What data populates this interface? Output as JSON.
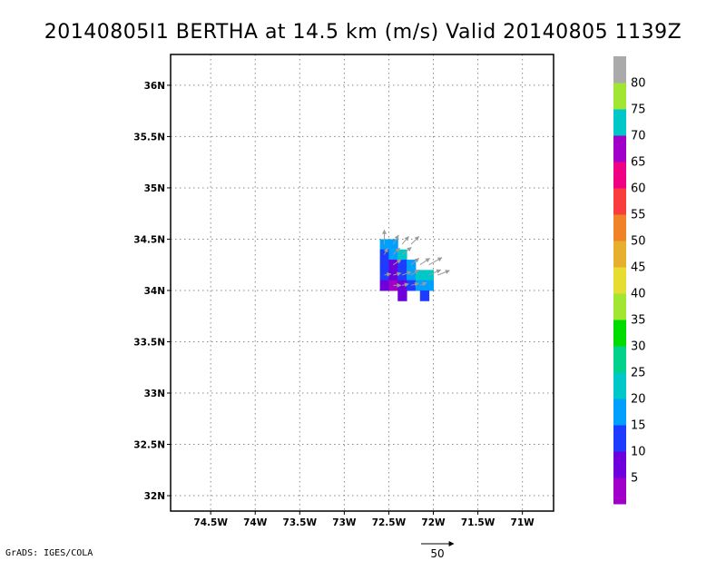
{
  "chart_data": {
    "type": "heatmap",
    "title": "20140805I1 BERTHA at 14.5 km (m/s) Valid 20140805 1139Z",
    "credit": "GrADS: IGES/COLA",
    "xlim": [
      -74.95,
      -70.65
    ],
    "ylim": [
      31.85,
      36.3
    ],
    "x_ticks": [
      {
        "value": -74.5,
        "label": "74.5W"
      },
      {
        "value": -74.0,
        "label": "74W"
      },
      {
        "value": -73.5,
        "label": "73.5W"
      },
      {
        "value": -73.0,
        "label": "73W"
      },
      {
        "value": -72.5,
        "label": "72.5W"
      },
      {
        "value": -72.0,
        "label": "72W"
      },
      {
        "value": -71.5,
        "label": "71.5W"
      },
      {
        "value": -71.0,
        "label": "71W"
      }
    ],
    "y_ticks": [
      {
        "value": 32.0,
        "label": "32N"
      },
      {
        "value": 32.5,
        "label": "32.5N"
      },
      {
        "value": 33.0,
        "label": "33N"
      },
      {
        "value": 33.5,
        "label": "33.5N"
      },
      {
        "value": 34.0,
        "label": "34N"
      },
      {
        "value": 34.5,
        "label": "34.5N"
      },
      {
        "value": 35.0,
        "label": "35N"
      },
      {
        "value": 35.5,
        "label": "35.5N"
      },
      {
        "value": 36.0,
        "label": "36N"
      }
    ],
    "grid": true,
    "colorbar": {
      "colors": [
        "#a000c8",
        "#6e00dc",
        "#1e3cff",
        "#00a0ff",
        "#00c8c8",
        "#00d28c",
        "#00dc00",
        "#a0e632",
        "#e6dc32",
        "#e6af2d",
        "#f08228",
        "#fa3c3c",
        "#f00082",
        "#a000c8",
        "#00c8c8",
        "#a0e632",
        "#aaaaaa"
      ],
      "labels": [
        "5",
        "10",
        "15",
        "20",
        "25",
        "30",
        "35",
        "40",
        "45",
        "50",
        "55",
        "60",
        "65",
        "70",
        "75",
        "80"
      ]
    },
    "cell_size_deg": 0.1,
    "cells": [
      {
        "lon": -72.55,
        "lat": 34.45,
        "speed": 17
      },
      {
        "lon": -72.45,
        "lat": 34.45,
        "speed": 17
      },
      {
        "lon": -72.55,
        "lat": 34.35,
        "speed": 12
      },
      {
        "lon": -72.45,
        "lat": 34.35,
        "speed": 17
      },
      {
        "lon": -72.35,
        "lat": 34.35,
        "speed": 22
      },
      {
        "lon": -72.55,
        "lat": 34.25,
        "speed": 12
      },
      {
        "lon": -72.45,
        "lat": 34.25,
        "speed": 8
      },
      {
        "lon": -72.35,
        "lat": 34.25,
        "speed": 12
      },
      {
        "lon": -72.25,
        "lat": 34.25,
        "speed": 17
      },
      {
        "lon": -72.55,
        "lat": 34.15,
        "speed": 12
      },
      {
        "lon": -72.45,
        "lat": 34.15,
        "speed": 8
      },
      {
        "lon": -72.35,
        "lat": 34.15,
        "speed": 12
      },
      {
        "lon": -72.25,
        "lat": 34.15,
        "speed": 17
      },
      {
        "lon": -72.15,
        "lat": 34.15,
        "speed": 22
      },
      {
        "lon": -72.05,
        "lat": 34.15,
        "speed": 22
      },
      {
        "lon": -72.55,
        "lat": 34.05,
        "speed": 8
      },
      {
        "lon": -72.45,
        "lat": 34.05,
        "speed": 3
      },
      {
        "lon": -72.35,
        "lat": 34.05,
        "speed": 8
      },
      {
        "lon": -72.25,
        "lat": 34.05,
        "speed": 12
      },
      {
        "lon": -72.15,
        "lat": 34.05,
        "speed": 17
      },
      {
        "lon": -72.05,
        "lat": 34.05,
        "speed": 17
      },
      {
        "lon": -72.35,
        "lat": 33.95,
        "speed": 8
      },
      {
        "lon": -72.1,
        "lat": 33.95,
        "speed": 12
      }
    ],
    "vectors": [
      {
        "lon": -72.55,
        "lat": 34.45,
        "u": 0,
        "v": 22
      },
      {
        "lon": -72.45,
        "lat": 34.45,
        "u": 8,
        "v": 14
      },
      {
        "lon": -72.35,
        "lat": 34.45,
        "u": 10,
        "v": 12
      },
      {
        "lon": -72.25,
        "lat": 34.45,
        "u": 12,
        "v": 12
      },
      {
        "lon": -72.55,
        "lat": 34.35,
        "u": 5,
        "v": 10
      },
      {
        "lon": -72.45,
        "lat": 34.35,
        "u": 10,
        "v": 10
      },
      {
        "lon": -72.35,
        "lat": 34.35,
        "u": 14,
        "v": 11
      },
      {
        "lon": -72.05,
        "lat": 34.25,
        "u": 20,
        "v": 11
      },
      {
        "lon": -72.15,
        "lat": 34.25,
        "u": 15,
        "v": 10
      },
      {
        "lon": -72.25,
        "lat": 34.25,
        "u": 12,
        "v": 10
      },
      {
        "lon": -72.45,
        "lat": 34.25,
        "u": 12,
        "v": 8
      },
      {
        "lon": -72.55,
        "lat": 34.15,
        "u": 10,
        "v": 2
      },
      {
        "lon": -72.45,
        "lat": 34.15,
        "u": 12,
        "v": 3
      },
      {
        "lon": -72.35,
        "lat": 34.15,
        "u": 14,
        "v": 5
      },
      {
        "lon": -72.25,
        "lat": 34.15,
        "u": 12,
        "v": 8
      },
      {
        "lon": -72.05,
        "lat": 34.15,
        "u": 18,
        "v": 8
      },
      {
        "lon": -71.95,
        "lat": 34.15,
        "u": 18,
        "v": 7
      },
      {
        "lon": -72.45,
        "lat": 34.05,
        "u": 12,
        "v": 0
      },
      {
        "lon": -72.35,
        "lat": 34.05,
        "u": 10,
        "v": 2
      },
      {
        "lon": -72.25,
        "lat": 34.05,
        "u": 12,
        "v": 3
      },
      {
        "lon": -72.15,
        "lat": 34.05,
        "u": 10,
        "v": 4
      }
    ],
    "reference_vector": {
      "label": "50",
      "u": 50,
      "v": 0
    }
  }
}
